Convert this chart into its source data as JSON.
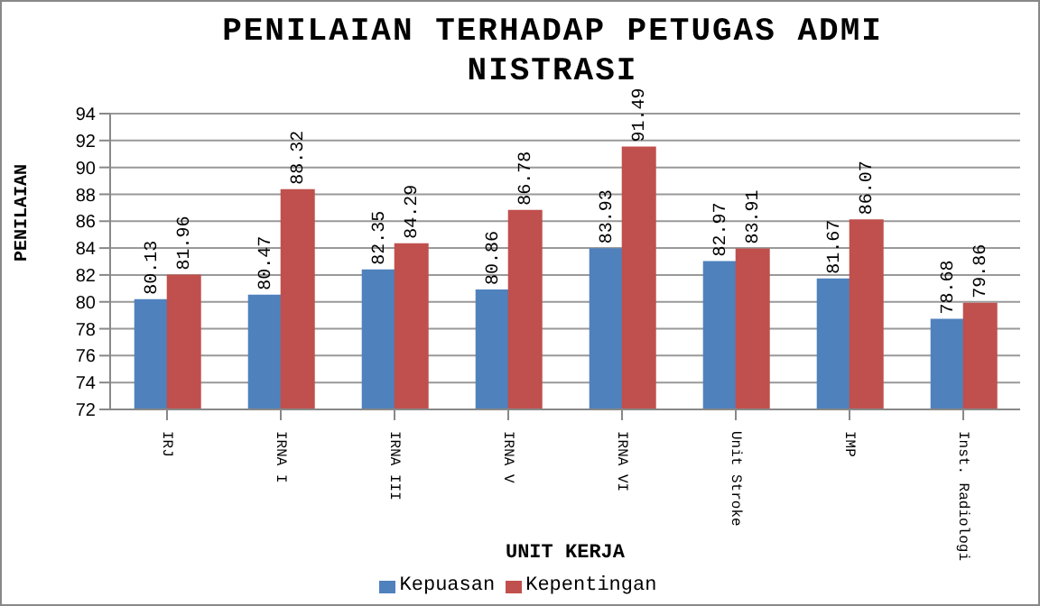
{
  "chart_data": {
    "type": "bar",
    "title": "PENILAIAN TERHADAP PETUGAS ADMINISTRASI",
    "xlabel": "UNIT KERJA",
    "ylabel": "PENILAIAN",
    "categories": [
      "IRJ",
      "IRNA I",
      "IRNA III",
      "IRNA V",
      "IRNA VI",
      "Unit Stroke",
      "IMP",
      "Inst. Radiologi"
    ],
    "series": [
      {
        "name": "Kepuasan",
        "color": "#4f81bd",
        "values": [
          80.13,
          80.47,
          82.35,
          80.86,
          83.93,
          82.97,
          81.67,
          78.68
        ]
      },
      {
        "name": "Kepentingan",
        "color": "#c0504d",
        "values": [
          81.96,
          88.32,
          84.29,
          86.78,
          91.49,
          83.91,
          86.07,
          79.86
        ]
      }
    ],
    "ylim": [
      72,
      94
    ],
    "yticks": [
      72,
      74,
      76,
      78,
      80,
      82,
      84,
      86,
      88,
      90,
      92,
      94
    ],
    "grid": "y",
    "legend": "bottom",
    "data_labels": true
  }
}
